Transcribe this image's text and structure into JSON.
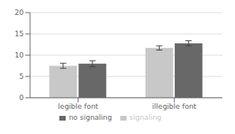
{
  "chart_data": {
    "type": "bar",
    "categories": [
      "legible font",
      "illegible font"
    ],
    "series": [
      {
        "name": "signaling",
        "color": "#c8c8c8",
        "values": [
          7.5,
          11.7
        ],
        "errors": [
          0.6,
          0.5
        ]
      },
      {
        "name": "no signaling",
        "color": "#686868",
        "values": [
          8.0,
          12.8
        ],
        "errors": [
          0.7,
          0.6
        ]
      }
    ],
    "ylim": [
      0,
      20
    ],
    "yticks": [
      0,
      5,
      10,
      15,
      20
    ],
    "grid": true,
    "legend": "bottom"
  }
}
